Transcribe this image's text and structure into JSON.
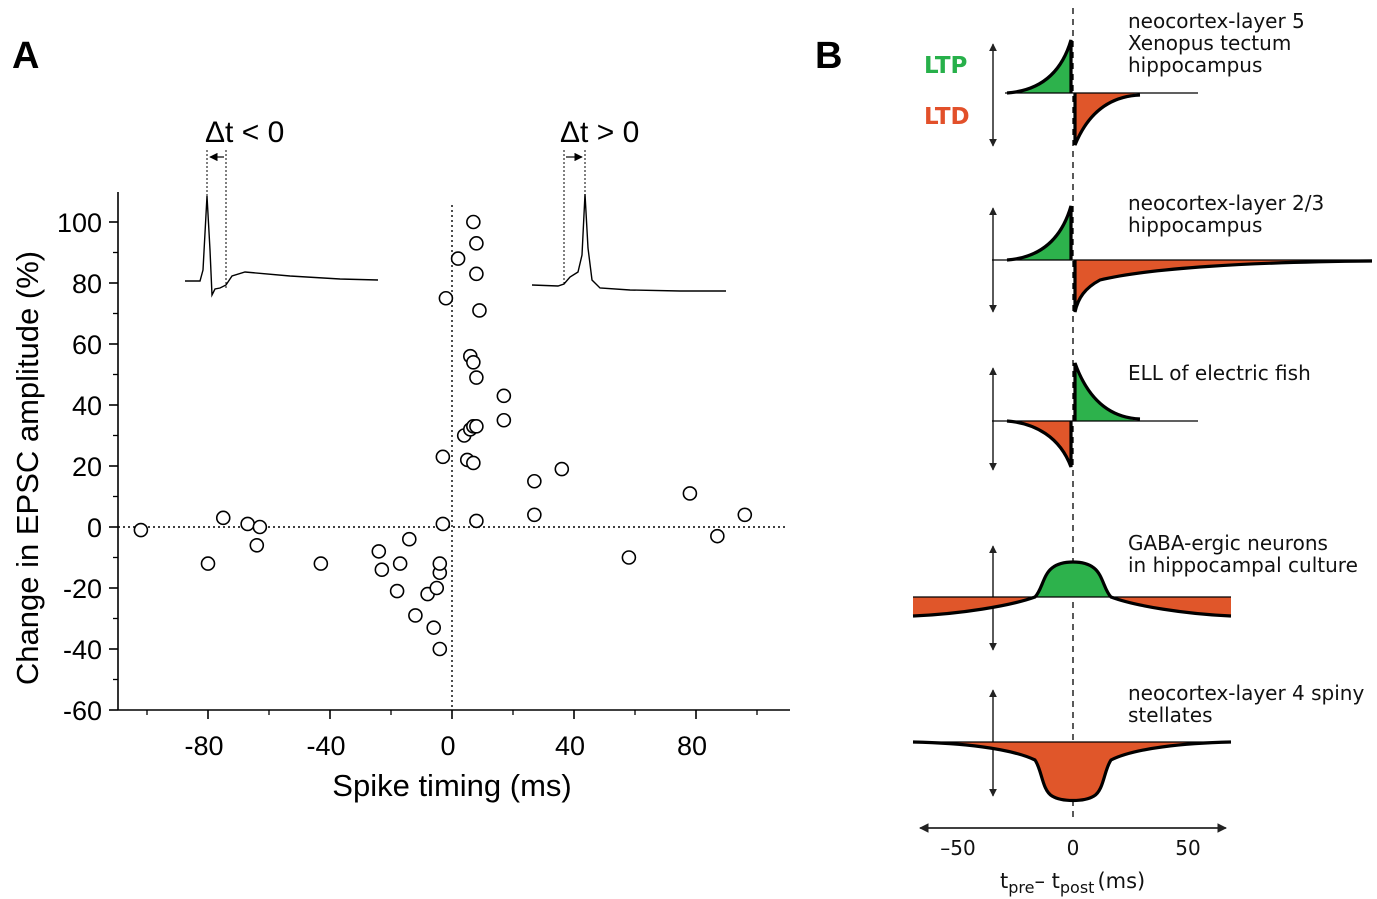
{
  "figure": {
    "panel_a_letter": "A",
    "panel_b_letter": "B"
  },
  "colors": {
    "ltp": "#2db24c",
    "ltd": "#e0562a",
    "ltp_text": "#27b04a",
    "ltd_text": "#e2502a"
  },
  "chart_data": [
    {
      "type": "scatter",
      "panel": "A",
      "xlabel": "Spike timing (ms)",
      "ylabel": "Change in EPSC amplitude (%)",
      "xlim": [
        -110,
        110
      ],
      "ylim": [
        -60,
        110
      ],
      "xticks": [
        -80,
        -40,
        0,
        40,
        80
      ],
      "yticks": [
        100,
        80,
        60,
        40,
        20,
        0,
        -20,
        -40,
        -60
      ],
      "tick_labels_x": [
        "-80",
        "-40",
        "0",
        "40",
        "80"
      ],
      "tick_labels_y": [
        "100",
        "80",
        "60",
        "40",
        "20",
        "0",
        "-20",
        "-40",
        "-60"
      ],
      "insets": {
        "neg_label": "Δt < 0",
        "pos_label": "Δt > 0"
      },
      "points": [
        [
          -102,
          -1
        ],
        [
          -80,
          -12
        ],
        [
          -75,
          3
        ],
        [
          -67,
          1
        ],
        [
          -64,
          -6
        ],
        [
          -63,
          0
        ],
        [
          -43,
          -12
        ],
        [
          -24,
          -8
        ],
        [
          -23,
          -14
        ],
        [
          -18,
          -21
        ],
        [
          -17,
          -12
        ],
        [
          -14,
          -4
        ],
        [
          -12,
          -29
        ],
        [
          -8,
          -22
        ],
        [
          -6,
          -33
        ],
        [
          -5,
          -20
        ],
        [
          -4,
          -15
        ],
        [
          -4,
          -12
        ],
        [
          -4,
          -40
        ],
        [
          -3,
          1
        ],
        [
          -3,
          23
        ],
        [
          -2,
          75
        ],
        [
          2,
          88
        ],
        [
          4,
          30
        ],
        [
          5,
          22
        ],
        [
          6,
          56
        ],
        [
          6,
          32
        ],
        [
          7,
          54
        ],
        [
          7,
          100
        ],
        [
          7,
          33
        ],
        [
          7,
          21
        ],
        [
          8,
          93
        ],
        [
          8,
          83
        ],
        [
          8,
          49
        ],
        [
          8,
          2
        ],
        [
          9,
          71
        ],
        [
          8,
          33
        ],
        [
          17,
          43
        ],
        [
          17,
          35
        ],
        [
          27,
          15
        ],
        [
          27,
          4
        ],
        [
          36,
          19
        ],
        [
          58,
          -10
        ],
        [
          78,
          11
        ],
        [
          87,
          -3
        ],
        [
          96,
          4
        ]
      ]
    },
    {
      "type": "line",
      "panel": "B",
      "xlabel_main": "t",
      "xlabel_sub1": "pre",
      "xlabel_mid": "– t",
      "xlabel_sub2": "post",
      "xlabel_unit": "(ms)",
      "xticks": [
        -50,
        0,
        50
      ],
      "tick_labels_x": [
        "–50",
        "0",
        "50"
      ],
      "legend": {
        "ltp": "LTP",
        "ltd": "LTD"
      },
      "rows": [
        {
          "label_lines": [
            "neocortex-layer 5",
            "Xenopus tectum",
            "hippocampus"
          ],
          "rule": "classic-short"
        },
        {
          "label_lines": [
            "neocortex-layer 2/3",
            "hippocampus"
          ],
          "rule": "classic-long-ltd"
        },
        {
          "label_lines": [
            "ELL  of electric fish"
          ],
          "rule": "anti-hebbian"
        },
        {
          "label_lines": [
            "GABA-ergic  neurons",
            "in hippocampal culture"
          ],
          "rule": "symmetric-ltp-center"
        },
        {
          "label_lines": [
            "neocortex-layer 4 spiny",
            "stellates"
          ],
          "rule": "symmetric-ltd"
        }
      ]
    }
  ]
}
